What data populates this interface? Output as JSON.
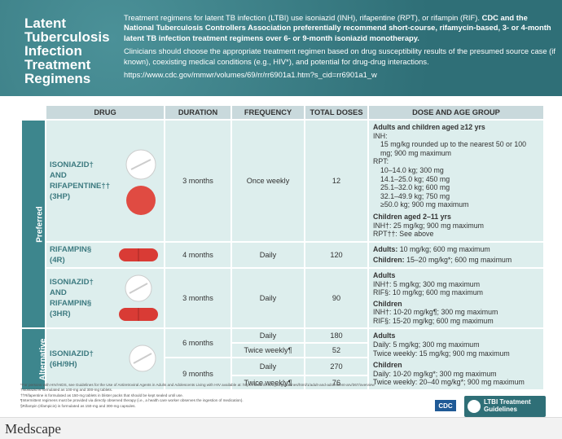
{
  "header": {
    "title": "Latent Tuberculosis Infection Treatment Regimens",
    "intro": {
      "text": "Treatment regimens for latent TB infection (LTBI) use isoniazid (INH), rifapentine (RPT), or rifampin (RIF).",
      "bold": "CDC and the National Tuberculosis Controllers Association preferentially recommend short-course, rifamycin-based, 3- or 4-month latent TB infection treatment regimens over 6- or 9-month isoniazid monotherapy."
    },
    "note": "Clinicians should choose the appropriate treatment regimen based on drug susceptibility results of the presumed source case (if known), coexisting medical conditions (e.g., HIV*), and potential for drug-drug interactions.",
    "url": "https://www.cdc.gov/mmwr/volumes/69/rr/rr6901a1.htm?s_cid=rr6901a1_w"
  },
  "table": {
    "headers": [
      "DRUG",
      "DURATION",
      "FREQUENCY",
      "TOTAL DOSES",
      "DOSE AND AGE GROUP"
    ],
    "groups": [
      "Preferred",
      "Alternative"
    ],
    "rows": [
      {
        "drug": [
          "ISONIAZID†",
          "AND",
          "RIFAPENTINE††",
          "(3HP)"
        ],
        "duration": "3 months",
        "frequency": "Once weekly",
        "doses": "12",
        "dose": [
          {
            "heading": "Adults and children aged ≥12 yrs",
            "lines": [
              "INH:",
              "15 mg/kg rounded up to the nearest 50 or 100 mg; 900 mg maximum",
              "RPT:",
              "10–14.0 kg; 300 mg",
              "14.1–25.0 kg; 450 mg",
              "25.1–32.0 kg; 600 mg",
              "32.1–49.9 kg; 750 mg",
              "≥50.0 kg; 900 mg maximum"
            ]
          },
          {
            "heading": "Children aged 2–11 yrs",
            "lines": [
              "INH†: 25 mg/kg; 900 mg maximum",
              "RPT††: See above"
            ]
          }
        ]
      },
      {
        "drug": [
          "RIFAMPIN§",
          "(4R)"
        ],
        "duration": "4 months",
        "frequency": "Daily",
        "doses": "120",
        "dose": [
          {
            "heading": "Adults:",
            "lines": [
              "10 mg/kg; 600 mg maximum"
            ]
          },
          {
            "heading": "Children:",
            "lines": [
              "15–20 mg/kg*; 600 mg maximum"
            ]
          }
        ]
      },
      {
        "drug": [
          "ISONIAZID†",
          "AND",
          "RIFAMPIN§",
          "(3HR)"
        ],
        "duration": "3 months",
        "frequency": "Daily",
        "doses": "90",
        "dose": [
          {
            "heading": "Adults",
            "lines": [
              "INH†: 5 mg/kg; 300 mg maximum",
              "RIF§: 10 mg/kg; 600 mg maximum"
            ]
          },
          {
            "heading": "Children",
            "lines": [
              "INH†: 10-20 mg/kg¶; 300 mg maximum",
              "RIF§: 15-20 mg/kg; 600 mg maximum"
            ]
          }
        ]
      },
      {
        "drug": [
          "ISONIAZID†",
          "(6H/9H)"
        ],
        "schedules": [
          {
            "duration": "6 months",
            "options": [
              {
                "frequency": "Daily",
                "doses": "180"
              },
              {
                "frequency": "Twice weekly¶",
                "doses": "52"
              }
            ]
          },
          {
            "duration": "9 months",
            "options": [
              {
                "frequency": "Daily",
                "doses": "270"
              },
              {
                "frequency": "Twice weekly¶",
                "doses": "76"
              }
            ]
          }
        ],
        "dose": [
          {
            "heading": "Adults",
            "lines": [
              "Daily: 5 mg/kg; 300 mg maximum",
              "Twice weekly: 15 mg/kg; 900 mg maximum"
            ]
          },
          {
            "heading": "Children",
            "lines": [
              "Daily: 10-20 mg/kg*; 300 mg maximum",
              "Twice weekly: 20–40 mg/kg*; 900 mg maximum"
            ]
          }
        ]
      }
    ]
  },
  "footnotes": [
    "*For persons with HIV/AIDS, see Guidelines for the Use of Antiretroviral Agents in Adults and Adolescents Living with HIV available at: https://aidsinfo.nih.gov/guidelines/html/1/adult-and-adolescent-arv/367/overview",
    "†Isoniazid is formulated as 100-mg and 300-mg tablets.",
    "††Rifapentine is formulated as 150-mg tablets in blister packs that should be kept sealed until use.",
    "¶Intermittent regimens must be provided via directly observed therapy (i.e., a health care worker observes the ingestion of medication).",
    "§Rifampin (rifampicin) is formulated as 150-mg and 300-mg capsules."
  ],
  "logos": {
    "cdc": "CDC",
    "ltbi": "LTBI Treatment Guidelines"
  },
  "footer": {
    "brand": "Medscape"
  }
}
